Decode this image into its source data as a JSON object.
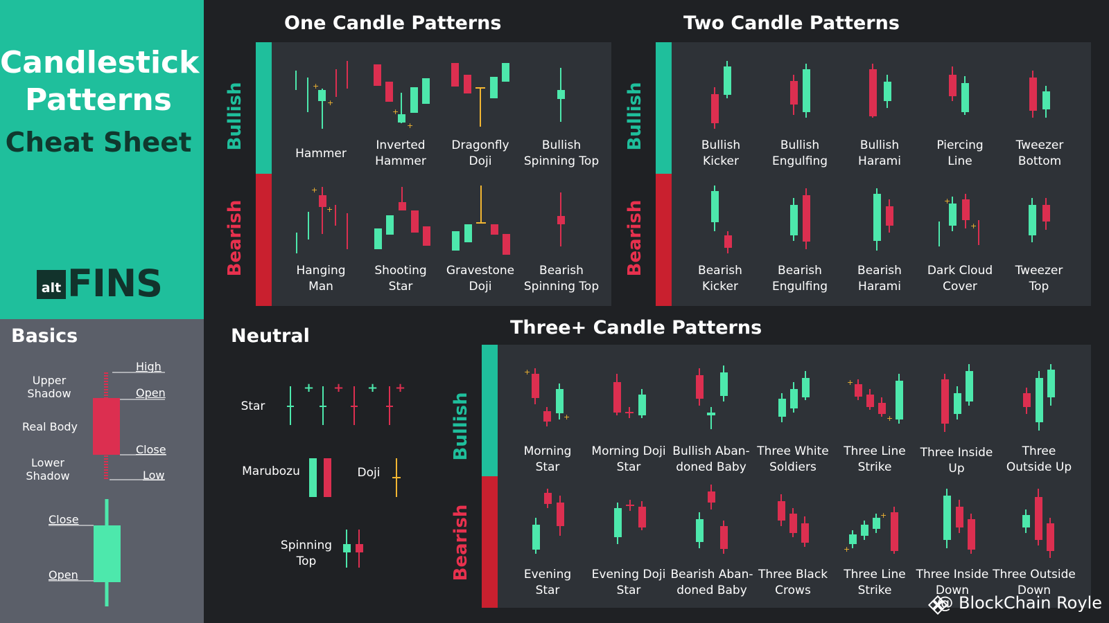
{
  "title": {
    "line1": "Candlestick",
    "line2": "Patterns",
    "line3": "Cheat Sheet"
  },
  "logo": {
    "small": "alt",
    "big": "FINS"
  },
  "basics": {
    "title": "Basics",
    "upper_shadow_1": "Upper",
    "upper_shadow_2": "Shadow",
    "real_body": "Real Body",
    "lower_shadow_1": "Lower",
    "lower_shadow_2": "Shadow",
    "high": "High",
    "open": "Open",
    "close": "Close",
    "low": "Low",
    "close2": "Close",
    "open2": "Open"
  },
  "one_candle": {
    "title": "One Candle Patterns",
    "bullish_label": "Bullish",
    "bearish_label": "Bearish",
    "bullish": [
      {
        "l1": "Hammer",
        "l2": ""
      },
      {
        "l1": "Inverted",
        "l2": "Hammer"
      },
      {
        "l1": "Dragonfly",
        "l2": "Doji"
      },
      {
        "l1": "Bullish",
        "l2": "Spinning Top"
      }
    ],
    "bearish": [
      {
        "l1": "Hanging",
        "l2": "Man"
      },
      {
        "l1": "Shooting",
        "l2": "Star"
      },
      {
        "l1": "Gravestone",
        "l2": "Doji"
      },
      {
        "l1": "Bearish",
        "l2": "Spinning Top"
      }
    ]
  },
  "two_candle": {
    "title": "Two Candle Patterns",
    "bullish_label": "Bullish",
    "bearish_label": "Bearish",
    "bullish": [
      {
        "l1": "Bullish",
        "l2": "Kicker"
      },
      {
        "l1": "Bullish",
        "l2": "Engulfing"
      },
      {
        "l1": "Bullish",
        "l2": "Harami"
      },
      {
        "l1": "Piercing",
        "l2": "Line"
      },
      {
        "l1": "Tweezer",
        "l2": "Bottom"
      }
    ],
    "bearish": [
      {
        "l1": "Bearish",
        "l2": "Kicker"
      },
      {
        "l1": "Bearish",
        "l2": "Engulfing"
      },
      {
        "l1": "Bearish",
        "l2": "Harami"
      },
      {
        "l1": "Dark Cloud",
        "l2": "Cover"
      },
      {
        "l1": "Tweezer",
        "l2": "Top"
      }
    ]
  },
  "neutral": {
    "title": "Neutral",
    "star": "Star",
    "marubozu": "Marubozu",
    "doji": "Doji",
    "spinning_1": "Spinning",
    "spinning_2": "Top"
  },
  "three_candle": {
    "title": "Three+ Candle Patterns",
    "bullish_label": "Bullish",
    "bearish_label": "Bearish",
    "bullish": [
      {
        "l1": "Morning",
        "l2": "Star"
      },
      {
        "l1": "Morning Doji",
        "l2": "Star"
      },
      {
        "l1": "Bullish Aban-",
        "l2": "doned Baby"
      },
      {
        "l1": "Three White",
        "l2": "Soldiers"
      },
      {
        "l1": "Three Line",
        "l2": "Strike"
      },
      {
        "l1": "Three Inside",
        "l2": "Up"
      },
      {
        "l1": "Three",
        "l2": "Outside Up"
      }
    ],
    "bearish": [
      {
        "l1": "Evening",
        "l2": "Star"
      },
      {
        "l1": "Evening Doji",
        "l2": "Star"
      },
      {
        "l1": "Bearish Aban-",
        "l2": "doned Baby"
      },
      {
        "l1": "Three Black",
        "l2": "Crows"
      },
      {
        "l1": "Three Line",
        "l2": "Strike"
      },
      {
        "l1": "Three Inside",
        "l2": "Down"
      },
      {
        "l1": "Three Outside",
        "l2": "Down"
      }
    ]
  },
  "credit": "@ BlockChain Royle",
  "colors": {
    "bull": "#4de8ac",
    "bear": "#dc2f50",
    "doji": "#f2b632",
    "accent": "#1fbf9c",
    "bear_bar": "#c9202f"
  }
}
